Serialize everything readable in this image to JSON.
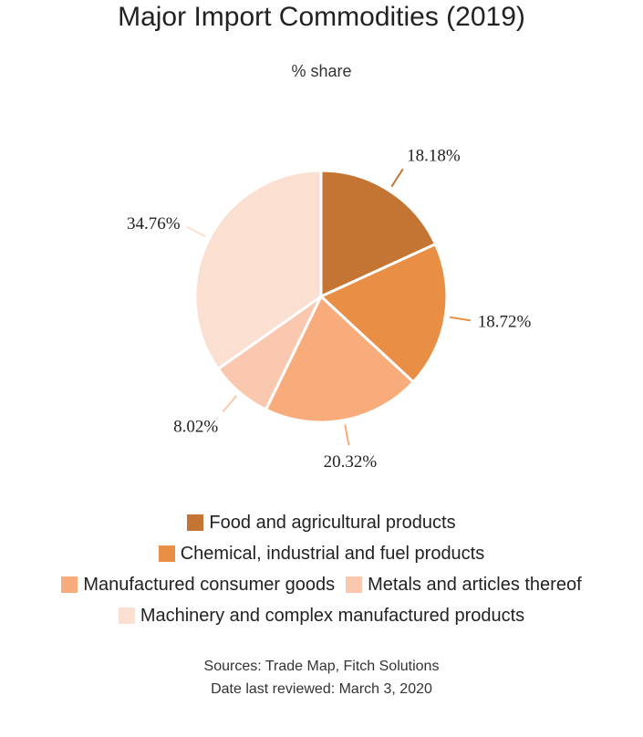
{
  "chart_data": {
    "type": "pie",
    "title": "Major Import Commodities (2019)",
    "subtitle": "% share",
    "slices": [
      {
        "name": "Food and agricultural products",
        "value": 18.18,
        "label": "18.18%",
        "color": "#c47534"
      },
      {
        "name": "Chemical, industrial and fuel products",
        "value": 18.72,
        "label": "18.72%",
        "color": "#e88f45"
      },
      {
        "name": "Manufactured consumer goods",
        "value": 20.32,
        "label": "20.32%",
        "color": "#f8ab7b"
      },
      {
        "name": "Metals and articles thereof",
        "value": 8.02,
        "label": "8.02%",
        "color": "#f9c8ae"
      },
      {
        "name": "Machinery and complex manufactured products",
        "value": 34.76,
        "label": "34.76%",
        "color": "#fbdfd0"
      }
    ],
    "legend_placement": "bottom"
  },
  "footer": {
    "sources": "Sources: Trade Map, Fitch Solutions",
    "reviewed": "Date last reviewed: March 3, 2020"
  }
}
